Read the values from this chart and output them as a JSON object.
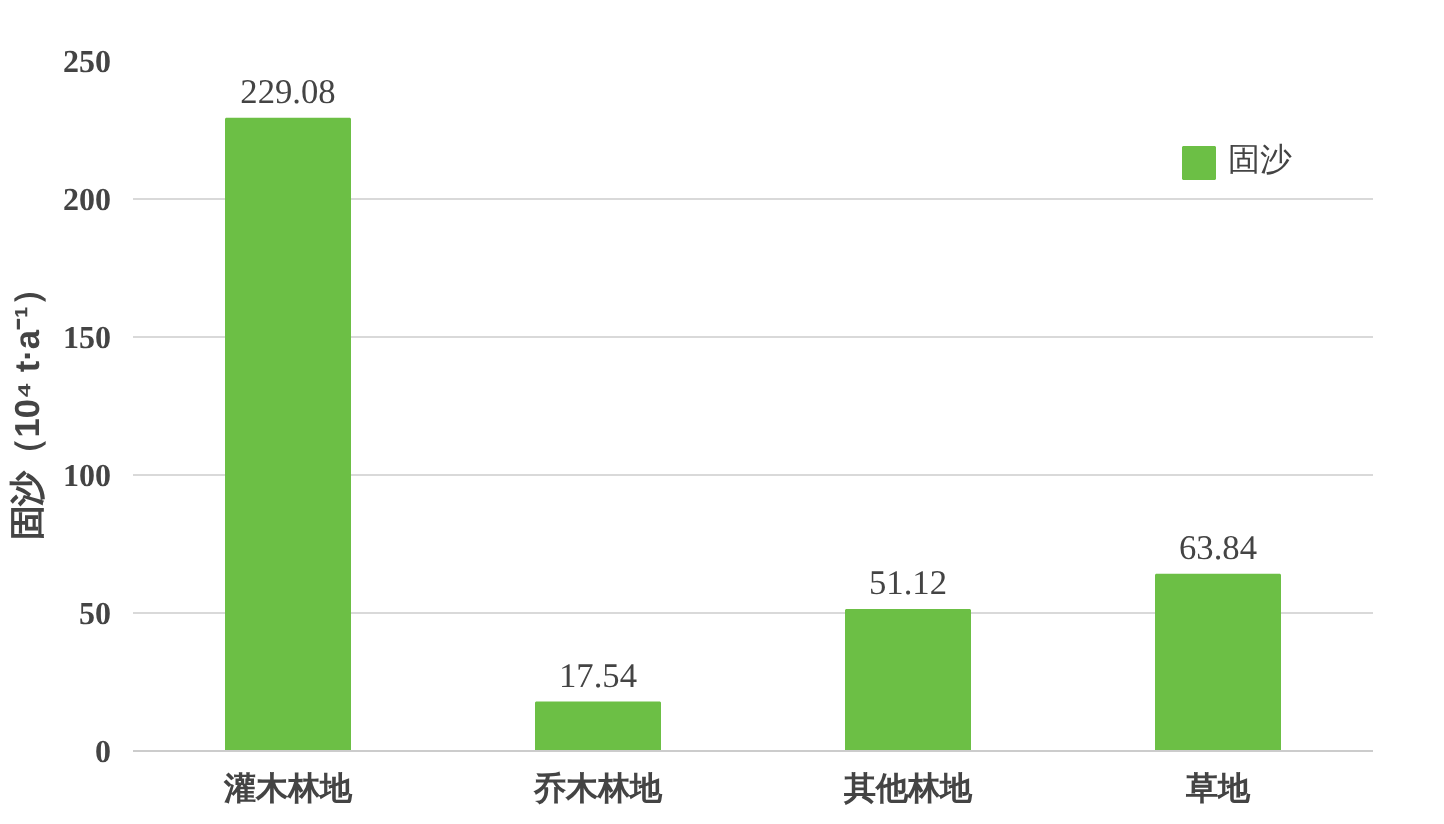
{
  "chart_data": {
    "type": "bar",
    "ylabel": "固沙（10⁴ t·a⁻¹）",
    "categories": [
      "灌木林地",
      "乔木林地",
      "其他林地",
      "草地"
    ],
    "series": [
      {
        "name": "固沙",
        "color": "#6cbf45",
        "values": [
          229.08,
          17.54,
          51.12,
          63.84
        ]
      }
    ],
    "ylim": [
      0,
      250
    ],
    "yticks": [
      0,
      50,
      100,
      150,
      200,
      250
    ],
    "grid": "y",
    "legend": "top right",
    "data_labels": true
  }
}
